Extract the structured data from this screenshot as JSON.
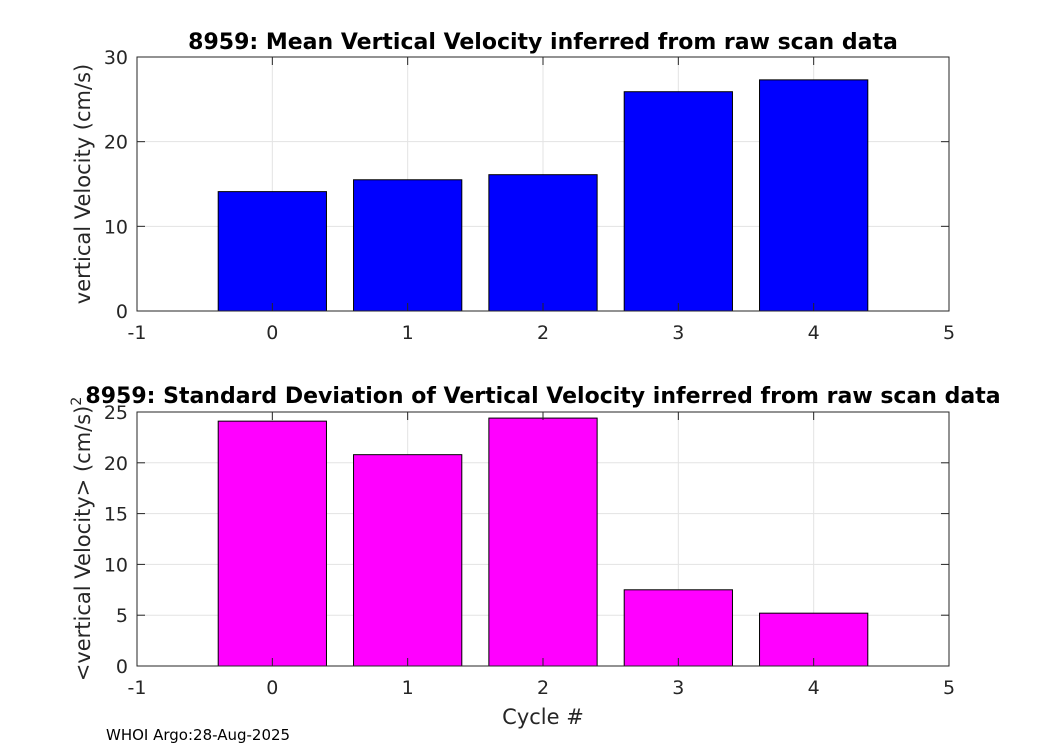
{
  "chart_data": [
    {
      "type": "bar",
      "title": "8959: Mean Vertical Velocity inferred from raw scan data",
      "xlabel": "",
      "ylabel": "vertical Velocity (cm/s)",
      "categories": [
        0,
        1,
        2,
        3,
        4
      ],
      "values": [
        14.1,
        15.5,
        16.1,
        25.9,
        27.3
      ],
      "xlim": [
        -1,
        5
      ],
      "ylim": [
        0,
        30
      ],
      "xticks": [
        -1,
        0,
        1,
        2,
        3,
        4,
        5
      ],
      "yticks": [
        0,
        10,
        20,
        30
      ],
      "bar_color": "#0000ff",
      "grid": true
    },
    {
      "type": "bar",
      "title": "8959: Standard Deviation of Vertical Velocity inferred from raw scan data",
      "xlabel": "Cycle #",
      "ylabel": "<vertical Velocity> (cm/s)",
      "ylabel_superscript": "2",
      "categories": [
        0,
        1,
        2,
        3,
        4
      ],
      "values": [
        24.1,
        20.8,
        24.4,
        7.5,
        5.2
      ],
      "xlim": [
        -1,
        5
      ],
      "ylim": [
        0,
        25
      ],
      "xticks": [
        -1,
        0,
        1,
        2,
        3,
        4,
        5
      ],
      "yticks": [
        0,
        5,
        10,
        15,
        20,
        25
      ],
      "bar_color": "#ff00ff",
      "grid": true
    }
  ],
  "footer": "WHOI Argo:28-Aug-2025"
}
